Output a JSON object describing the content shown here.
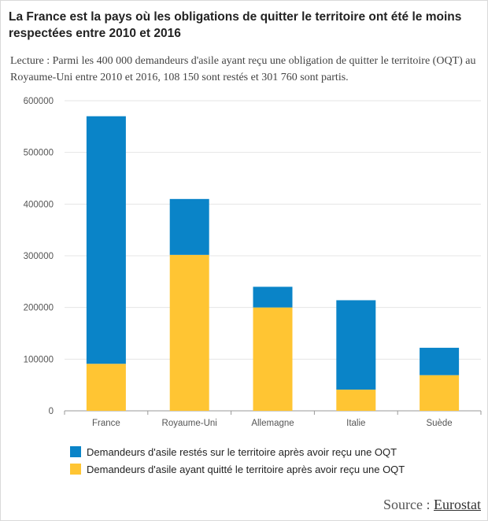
{
  "title": "La France est la pays où les obligations de quitter le territoire ont été le moins respectées entre 2010 et 2016",
  "subtitle": "Lecture : Parmi les 400 000 demandeurs d'asile ayant reçu une obligation de quitter le territoire (OQT) au Royaume-Uni entre 2010 et 2016, 108 150 sont restés et 301 760 sont partis.",
  "source": {
    "prefix": "Source : ",
    "link": "Eurostat"
  },
  "colors": {
    "stayed": "#0a84c8",
    "left": "#ffc533",
    "grid": "#e4e4e4",
    "axis": "#999999"
  },
  "chart_data": {
    "type": "bar",
    "stacked": true,
    "categories": [
      "France",
      "Royaume-Uni",
      "Allemagne",
      "Italie",
      "Suède"
    ],
    "series": [
      {
        "name": "Demandeurs d'asile ayant quitté le territoire après avoir reçu une OQT",
        "color": "#ffc533",
        "values": [
          91000,
          301760,
          200000,
          41000,
          69000
        ]
      },
      {
        "name": "Demandeurs d'asile restés sur le territoire après avoir reçu une OQT",
        "color": "#0a84c8",
        "values": [
          479000,
          108150,
          40000,
          173000,
          53000
        ]
      }
    ],
    "yticks": [
      "0",
      "100000",
      "200000",
      "300000",
      "400000",
      "500000",
      "600000"
    ],
    "ylim": [
      0,
      600000
    ],
    "legend_order": [
      "Demandeurs d'asile restés sur le territoire après avoir reçu une OQT",
      "Demandeurs d'asile ayant quitté le territoire après avoir reçu une OQT"
    ],
    "legend_position": "bottom-left",
    "grid": true
  }
}
